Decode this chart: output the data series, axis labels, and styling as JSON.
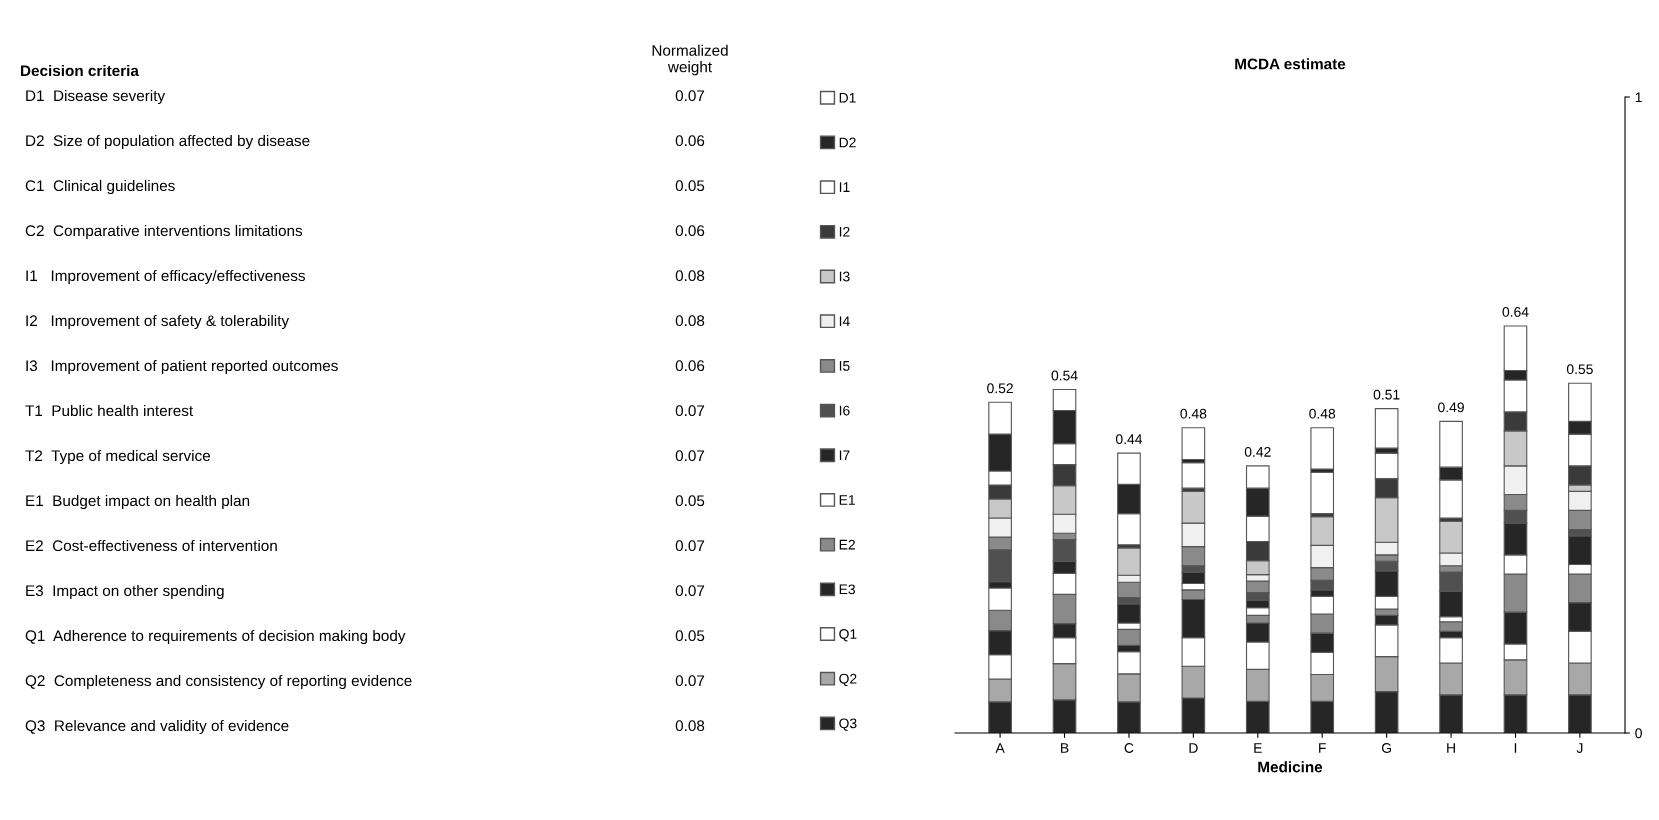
{
  "chart_data": [
    {
      "type": "other",
      "title": "Decision criteria",
      "subtitle": "Normalized\nweight",
      "categories": [
        "D1  Disease severity",
        "D2  Size of population affected by disease",
        "C1  Clinical guidelines",
        "C2  Comparative interventions limitations",
        "I1   Improvement of efficacy/effectiveness",
        "I2   Improvement of safety & tolerability",
        "I3   Improvement of patient reported outcomes",
        "T1  Public health interest",
        "T2  Type of medical service",
        "E1  Budget impact on health plan",
        "E2  Cost-effectiveness of intervention",
        "E3  Impact on other spending",
        "Q1  Adherence to requirements of decision making body",
        "Q2  Completeness and consistency of reporting evidence",
        "Q3  Relevance and validity of evidence"
      ],
      "values": [
        0.07,
        0.06,
        0.05,
        0.06,
        0.08,
        0.08,
        0.06,
        0.07,
        0.07,
        0.05,
        0.07,
        0.07,
        0.05,
        0.07,
        0.08
      ],
      "data_labels": true
    },
    {
      "type": "bar",
      "title": "MCDA estimate",
      "xlabel": "Medicine",
      "stacked": true,
      "legend": "left",
      "categories": [
        "A",
        "B",
        "C",
        "D",
        "E",
        "F",
        "G",
        "H",
        "I",
        "J"
      ],
      "ylim": [
        0,
        1
      ],
      "yticks": [
        0,
        1
      ],
      "totals": [
        "0.52",
        "0.54",
        "0.44",
        "0.48",
        "0.42",
        "0.48",
        "0.51",
        "0.49",
        "0.64",
        "0.55"
      ],
      "series": [
        {
          "name": "Q3",
          "color": "#262626",
          "values": [
            0.049,
            0.052,
            0.049,
            0.055,
            0.05,
            0.05,
            0.065,
            0.06,
            0.06,
            0.06
          ]
        },
        {
          "name": "Q2",
          "color": "#a8a8a8",
          "values": [
            0.036,
            0.057,
            0.044,
            0.05,
            0.05,
            0.042,
            0.055,
            0.05,
            0.055,
            0.05
          ]
        },
        {
          "name": "Q1",
          "color": "#ffffff",
          "values": [
            0.038,
            0.041,
            0.035,
            0.045,
            0.043,
            0.035,
            0.05,
            0.04,
            0.025,
            0.05
          ]
        },
        {
          "name": "E3",
          "color": "#262626",
          "values": [
            0.038,
            0.022,
            0.01,
            0.06,
            0.03,
            0.03,
            0.015,
            0.01,
            0.05,
            0.045
          ]
        },
        {
          "name": "E2",
          "color": "#8a8a8a",
          "values": [
            0.032,
            0.046,
            0.025,
            0.015,
            0.012,
            0.03,
            0.01,
            0.015,
            0.06,
            0.045
          ]
        },
        {
          "name": "E1",
          "color": "#ffffff",
          "values": [
            0.035,
            0.033,
            0.01,
            0.01,
            0.012,
            0.028,
            0.02,
            0.008,
            0.03,
            0.015
          ]
        },
        {
          "name": "I7",
          "color": "#262626",
          "values": [
            0.01,
            0.019,
            0.03,
            0.018,
            0.012,
            0.01,
            0.04,
            0.04,
            0.05,
            0.045
          ]
        },
        {
          "name": "I6",
          "color": "#505050",
          "values": [
            0.05,
            0.034,
            0.01,
            0.01,
            0.012,
            0.015,
            0.015,
            0.03,
            0.02,
            0.01
          ]
        },
        {
          "name": "I5",
          "color": "#8a8a8a",
          "values": [
            0.02,
            0.01,
            0.024,
            0.03,
            0.018,
            0.02,
            0.01,
            0.01,
            0.025,
            0.03
          ]
        },
        {
          "name": "I4",
          "color": "#f0f0f0",
          "values": [
            0.03,
            0.03,
            0.011,
            0.037,
            0.01,
            0.035,
            0.02,
            0.02,
            0.045,
            0.03
          ]
        },
        {
          "name": "I3",
          "color": "#c8c8c8",
          "values": [
            0.03,
            0.045,
            0.043,
            0.05,
            0.022,
            0.045,
            0.07,
            0.05,
            0.055,
            0.01
          ]
        },
        {
          "name": "I2",
          "color": "#3a3a3a",
          "values": [
            0.022,
            0.033,
            0.005,
            0.005,
            0.03,
            0.005,
            0.03,
            0.005,
            0.03,
            0.03
          ]
        },
        {
          "name": "I1",
          "color": "#ffffff",
          "values": [
            0.022,
            0.033,
            0.049,
            0.04,
            0.04,
            0.065,
            0.04,
            0.06,
            0.05,
            0.05
          ]
        },
        {
          "name": "D2",
          "color": "#262626",
          "values": [
            0.058,
            0.052,
            0.046,
            0.005,
            0.044,
            0.005,
            0.008,
            0.02,
            0.015,
            0.02
          ]
        },
        {
          "name": "D1",
          "color": "#ffffff",
          "values": [
            0.05,
            0.033,
            0.049,
            0.05,
            0.035,
            0.065,
            0.062,
            0.072,
            0.07,
            0.06
          ]
        }
      ]
    }
  ]
}
